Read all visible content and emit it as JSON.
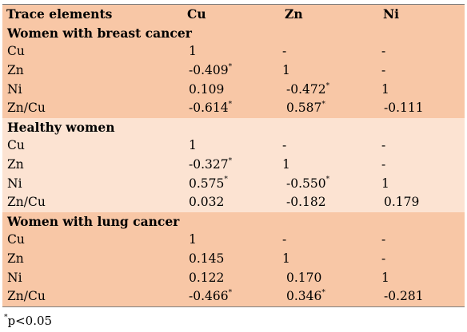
{
  "table": {
    "header": {
      "col0": "Trace elements",
      "col1": "Cu",
      "col2": "Zn",
      "col3": "Ni"
    },
    "groups": [
      {
        "title": "Women with breast cancer",
        "rows": [
          {
            "label": "Cu",
            "v1": "1",
            "v1_sig": "",
            "v2": "-",
            "v2_sig": "",
            "v3": "-",
            "v3_sig": ""
          },
          {
            "label": "Zn",
            "v1": "-0.409",
            "v1_sig": "*",
            "v2": "1",
            "v2_sig": "",
            "v3": "-",
            "v3_sig": ""
          },
          {
            "label": "Ni",
            "v1": "0.109",
            "v1_sig": "",
            "v2": "-0.472",
            "v2_sig": "*",
            "v3": "1",
            "v3_sig": ""
          },
          {
            "label": "Zn/Cu",
            "v1": "-0.614",
            "v1_sig": "*",
            "v2": "0.587",
            "v2_sig": "*",
            "v3": "-0.111",
            "v3_sig": ""
          }
        ]
      },
      {
        "title": "Healthy women",
        "rows": [
          {
            "label": "Cu",
            "v1": "1",
            "v1_sig": "",
            "v2": "-",
            "v2_sig": "",
            "v3": "-",
            "v3_sig": ""
          },
          {
            "label": "Zn",
            "v1": "-0.327",
            "v1_sig": "*",
            "v2": "1",
            "v2_sig": "",
            "v3": "-",
            "v3_sig": ""
          },
          {
            "label": "Ni",
            "v1": "0.575",
            "v1_sig": "*",
            "v2": "-0.550",
            "v2_sig": "*",
            "v3": "1",
            "v3_sig": ""
          },
          {
            "label": "Zn/Cu",
            "v1": "0.032",
            "v1_sig": "",
            "v2": "-0.182",
            "v2_sig": "",
            "v3": "0.179",
            "v3_sig": ""
          }
        ]
      },
      {
        "title": "Women with lung cancer",
        "rows": [
          {
            "label": "Cu",
            "v1": "1",
            "v1_sig": "",
            "v2": "-",
            "v2_sig": "",
            "v3": "-",
            "v3_sig": ""
          },
          {
            "label": "Zn",
            "v1": "0.145",
            "v1_sig": "",
            "v2": "1",
            "v2_sig": "",
            "v3": "-",
            "v3_sig": ""
          },
          {
            "label": "Ni",
            "v1": "0.122",
            "v1_sig": "",
            "v2": "0.170",
            "v2_sig": "",
            "v3": "1",
            "v3_sig": ""
          },
          {
            "label": "Zn/Cu",
            "v1": "-0.466",
            "v1_sig": "*",
            "v2": "0.346",
            "v2_sig": "*",
            "v3": "-0.281",
            "v3_sig": ""
          }
        ]
      }
    ]
  },
  "footnote": {
    "mark": "*",
    "text": "p<0.05"
  },
  "colors": {
    "band_dark": "#f8c7a6",
    "band_light": "#fce3d2",
    "rule": "#7f7f7f"
  }
}
